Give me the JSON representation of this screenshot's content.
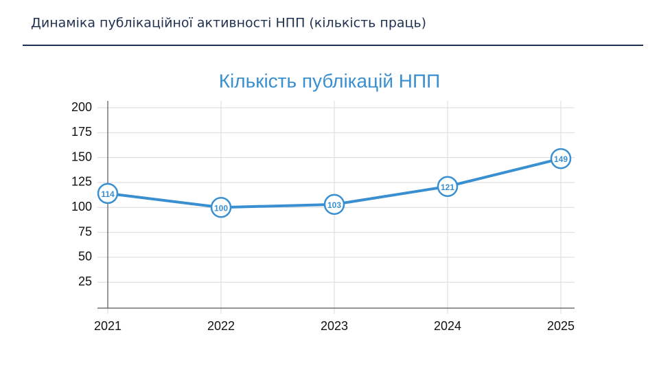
{
  "header": {
    "title": "Динаміка публікаційної активності НПП (кількість праць)"
  },
  "chart_data": {
    "type": "line",
    "title": "Кількість публікацій НПП",
    "categories": [
      "2021",
      "2022",
      "2023",
      "2024",
      "2025"
    ],
    "values": [
      114,
      100,
      103,
      121,
      149
    ],
    "color": "#3a8fd0",
    "ylim": [
      0,
      200
    ],
    "yticks": [
      25,
      50,
      75,
      100,
      125,
      150,
      175,
      200
    ],
    "grid": true
  }
}
